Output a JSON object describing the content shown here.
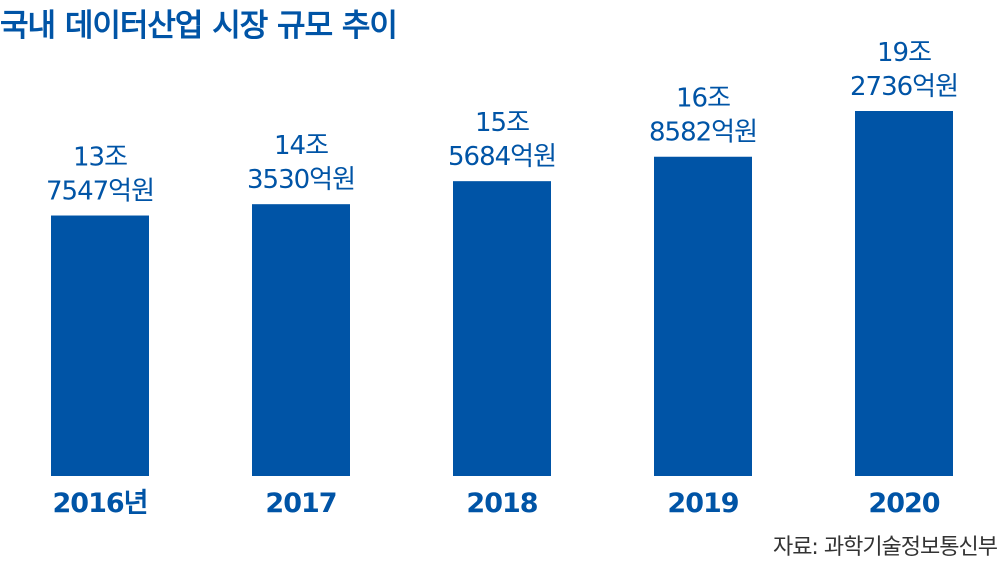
{
  "title": "국내 데이터산업 시장 규모 추이",
  "source": "자료: 과학기술정보통신부",
  "colors": {
    "bar": "#0054a6",
    "text": "#0054a6",
    "source": "#333333"
  },
  "chart_data": {
    "type": "bar",
    "categories": [
      "2016년",
      "2017",
      "2018",
      "2019",
      "2020"
    ],
    "values": [
      137547,
      143530,
      155684,
      168582,
      192736
    ],
    "value_unit": "억원",
    "data_labels": [
      [
        "13조",
        "7547억원"
      ],
      [
        "14조",
        "3530억원"
      ],
      [
        "15조",
        "5684억원"
      ],
      [
        "16조",
        "8582억원"
      ],
      [
        "19조",
        "2736억원"
      ]
    ],
    "ylim": [
      0,
      192736
    ],
    "grid": false,
    "legend": "none"
  }
}
